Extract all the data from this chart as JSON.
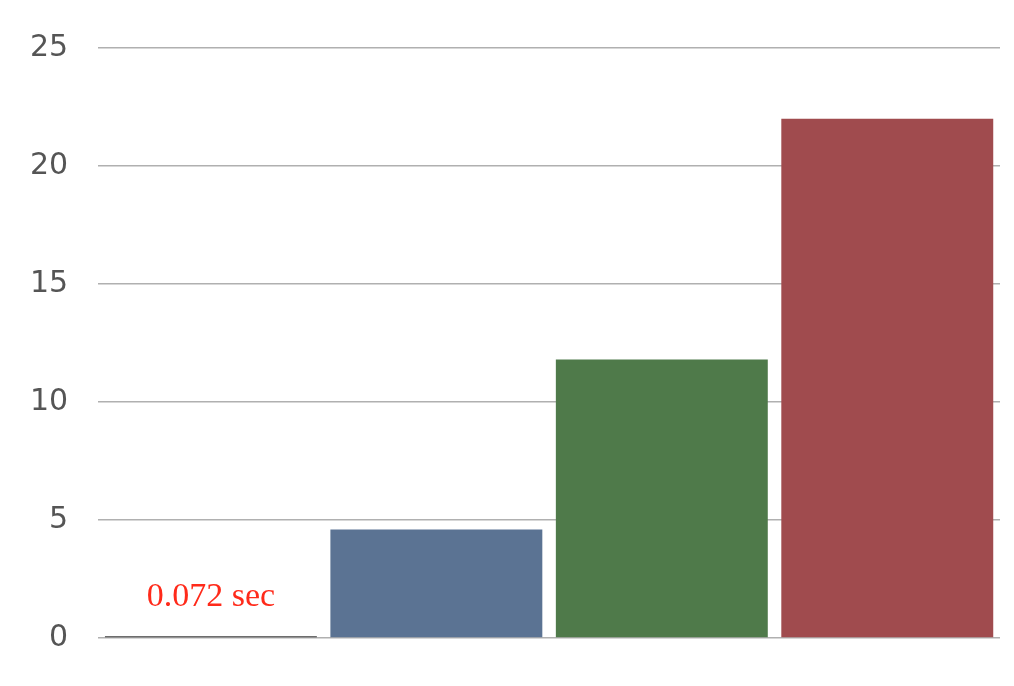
{
  "chart_data": {
    "type": "bar",
    "categories": [
      null,
      null,
      null,
      null
    ],
    "values": [
      0.072,
      4.6,
      11.8,
      22.0
    ],
    "colors": [
      "#3d3d3d",
      "#5b7393",
      "#4f7a4a",
      "#a04b4e"
    ],
    "value_labels": [
      "0.072 sec",
      null,
      null,
      null
    ],
    "ylim": [
      0,
      25
    ],
    "yticks": [
      0,
      5,
      10,
      15,
      20,
      25
    ],
    "grid": "y",
    "tick_labels": "y",
    "legend": false
  }
}
